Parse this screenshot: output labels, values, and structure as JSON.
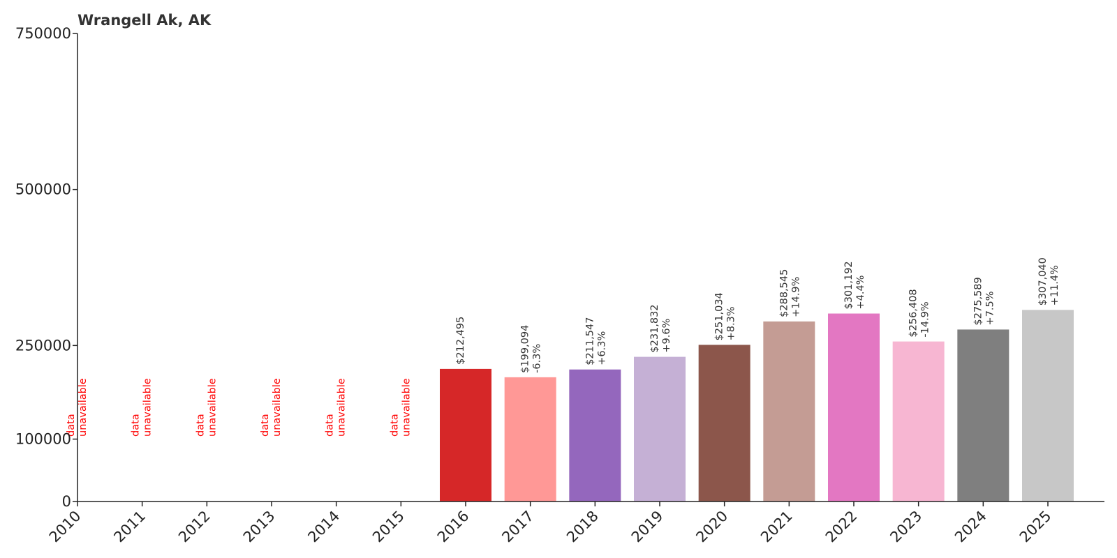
{
  "chart_data": {
    "type": "bar",
    "title": "Wrangell Ak, AK",
    "xlabel": "",
    "ylabel": "",
    "categories": [
      "2010",
      "2011",
      "2012",
      "2013",
      "2014",
      "2015",
      "2016",
      "2017",
      "2018",
      "2019",
      "2020",
      "2021",
      "2022",
      "2023",
      "2024",
      "2025"
    ],
    "values": [
      null,
      null,
      null,
      null,
      null,
      null,
      212495,
      199094,
      211547,
      231832,
      251034,
      288545,
      301192,
      256408,
      275589,
      307040
    ],
    "value_labels": [
      "",
      "",
      "",
      "",
      "",
      "",
      "$212,495",
      "$199,094",
      "$211,547",
      "$231,832",
      "$251,034",
      "$288,545",
      "$301,192",
      "$256,408",
      "$275,589",
      "$307,040"
    ],
    "change_labels": [
      "",
      "",
      "",
      "",
      "",
      "",
      "",
      "-6.3%",
      "+6.3%",
      "+9.6%",
      "+8.3%",
      "+14.9%",
      "+4.4%",
      "-14.9%",
      "+7.5%",
      "+11.4%"
    ],
    "unavailable_label": [
      "data",
      "unavailable"
    ],
    "colors": [
      "#d62728",
      "#d62728",
      "#d62728",
      "#d62728",
      "#d62728",
      "#d62728",
      "#d62728",
      "#ff9896",
      "#9467bd",
      "#c5b0d5",
      "#8c564b",
      "#c49c94",
      "#e377c2",
      "#f7b6d2",
      "#7f7f7f",
      "#c7c7c7"
    ],
    "unavailable_color": "#ff0000",
    "y_ticks": [
      0,
      100000,
      250000,
      500000,
      750000
    ],
    "ylim": [
      0,
      750000
    ],
    "grid": false,
    "legend": "none"
  }
}
